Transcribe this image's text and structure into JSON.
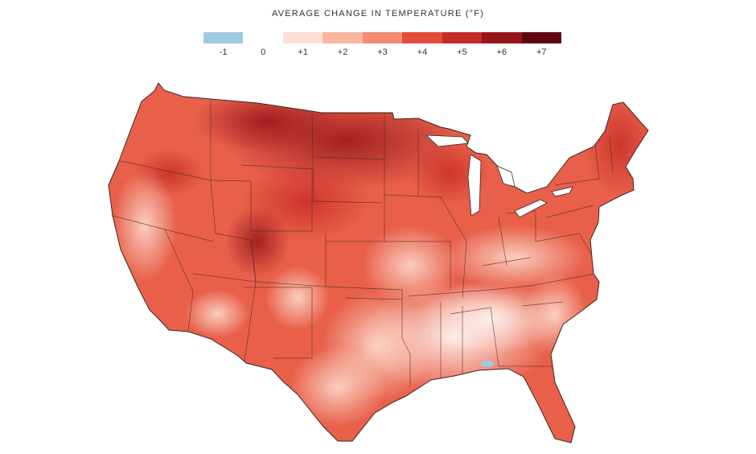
{
  "legend": {
    "title": "AVERAGE CHANGE IN TEMPERATURE (°F)",
    "bins": [
      {
        "color": "#9ecae1",
        "label": "-1"
      },
      {
        "color": "#ffffff",
        "label": "0"
      },
      {
        "color": "#fde1d4",
        "label": "+1"
      },
      {
        "color": "#f8b6a0",
        "label": "+2"
      },
      {
        "color": "#f28c73",
        "label": "+3"
      },
      {
        "color": "#e54b39",
        "label": "+4"
      },
      {
        "color": "#c62a26",
        "label": "+5"
      },
      {
        "color": "#96151b",
        "label": "+6"
      },
      {
        "color": "#5e0610",
        "label": "+7"
      }
    ]
  },
  "map": {
    "region": "contiguous-united-states",
    "boundaries": "state-lines",
    "pattern_by_region": [
      {
        "region": "north-central-plains",
        "change_f": 6
      },
      {
        "region": "new-england",
        "change_f": 5
      },
      {
        "region": "rocky-mountains",
        "change_f": 4.5
      },
      {
        "region": "pacific-northwest",
        "change_f": 3.5
      },
      {
        "region": "great-lakes",
        "change_f": 4
      },
      {
        "region": "southwest",
        "change_f": 3.5
      },
      {
        "region": "california",
        "change_f": 3
      },
      {
        "region": "central-plains",
        "change_f": 3
      },
      {
        "region": "mid-atlantic",
        "change_f": 3.5
      },
      {
        "region": "texas",
        "change_f": 2
      },
      {
        "region": "florida",
        "change_f": 3
      },
      {
        "region": "southeast",
        "change_f": 1
      },
      {
        "region": "south-alabama",
        "change_f": -1
      }
    ]
  }
}
